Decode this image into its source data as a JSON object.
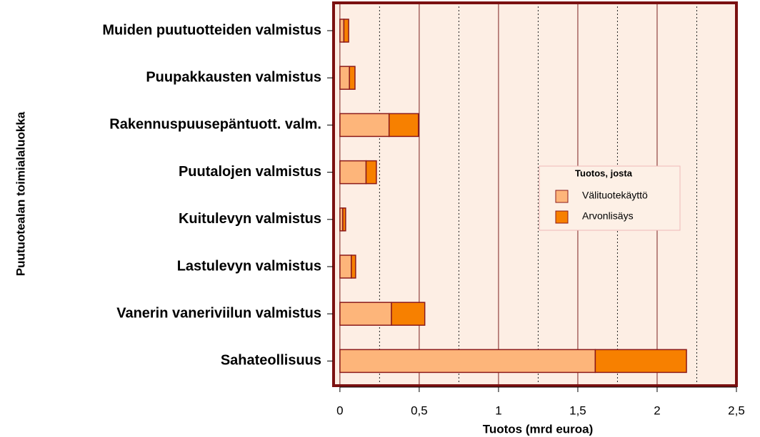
{
  "chart_data": {
    "type": "stacked_barh",
    "x_label": "Tuotos (mrd euroa)",
    "y_label": "Puutuotealan toimialaluokka",
    "categories": [
      "Muiden puutuotteiden valmistus",
      "Puupakkausten valmistus",
      "Rakennuspuusepäntuott. valm.",
      "Puutalojen valmistus",
      "Kuitulevyn valmistus",
      "Lastulevyn valmistus",
      "Vanerin vaneriviilun valmistus",
      "Sahateollisuus"
    ],
    "series": [
      {
        "name": "Välituotekäyttö",
        "color": "#fdb57a",
        "values": [
          0.025,
          0.06,
          0.31,
          0.165,
          0.018,
          0.072,
          0.325,
          1.61
        ]
      },
      {
        "name": "Arvonlisäys",
        "color": "#f78000",
        "values": [
          0.03,
          0.035,
          0.185,
          0.065,
          0.018,
          0.027,
          0.21,
          0.575
        ]
      }
    ],
    "legend_title": "Tuotos, josta",
    "xlim": [
      -0.04,
      2.5
    ],
    "xticks": [
      0,
      {
        "value": 0.5,
        "label": "0,5"
      },
      1,
      {
        "value": 1.5,
        "label": "1,5"
      },
      2,
      {
        "value": 2.5,
        "label": "2,5"
      }
    ],
    "minor_grid": [
      0.25,
      0.75,
      1.25,
      1.75,
      2.25
    ],
    "grid": true
  }
}
